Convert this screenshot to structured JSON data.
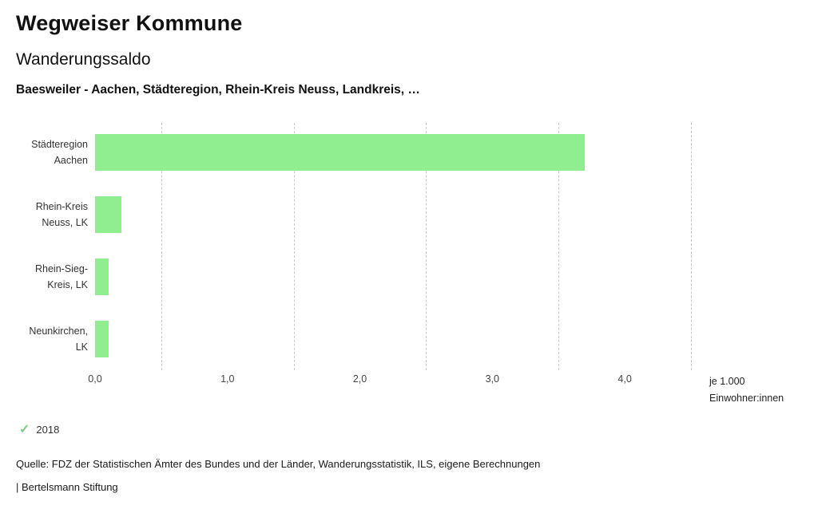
{
  "header": {
    "title": "Wegweiser Kommune",
    "subtitle": "Wanderungssaldo",
    "selection": "Baesweiler - Aachen, Städteregion, Rhein-Kreis Neuss, Landkreis, …"
  },
  "chart_data": {
    "type": "bar",
    "orientation": "horizontal",
    "title": "Wanderungssaldo",
    "subtitle": "Baesweiler - Aachen, Städteregion, Rhein-Kreis Neuss, Landkreis, …",
    "categories": [
      [
        "Städteregion",
        "Aachen"
      ],
      [
        "Rhein-Kreis",
        "Neuss, LK"
      ],
      [
        "Rhein-Sieg-",
        "Kreis, LK"
      ],
      [
        "Neunkirchen,",
        "LK"
      ]
    ],
    "values": [
      3.7,
      0.2,
      0.1,
      0.1
    ],
    "series_name": "2018",
    "xlim": [
      0,
      4.5
    ],
    "x_ticks": [
      0,
      1,
      2,
      3,
      4
    ],
    "x_tick_labels": [
      "0,0",
      "1,0",
      "2,0",
      "3,0",
      "4,0"
    ],
    "gridlines": [
      0.5,
      1.5,
      2.5,
      3.5,
      4.5
    ],
    "grid_style": "dashed",
    "bar_color": "#90ee90",
    "xlabel": "je 1.000 Einwohner:innen",
    "unit_label_line1": "je 1.000",
    "unit_label_line2": "Einwohner:innen",
    "legend_position": "bottom-left"
  },
  "legend": {
    "check_icon": "✓",
    "check_color": "#7fcf7f",
    "year": "2018"
  },
  "footer": {
    "source": "Quelle: FDZ der Statistischen Ämter des Bundes und der Länder, Wanderungsstatistik, ILS, eigene Berechnungen",
    "branding": "| Bertelsmann Stiftung"
  }
}
